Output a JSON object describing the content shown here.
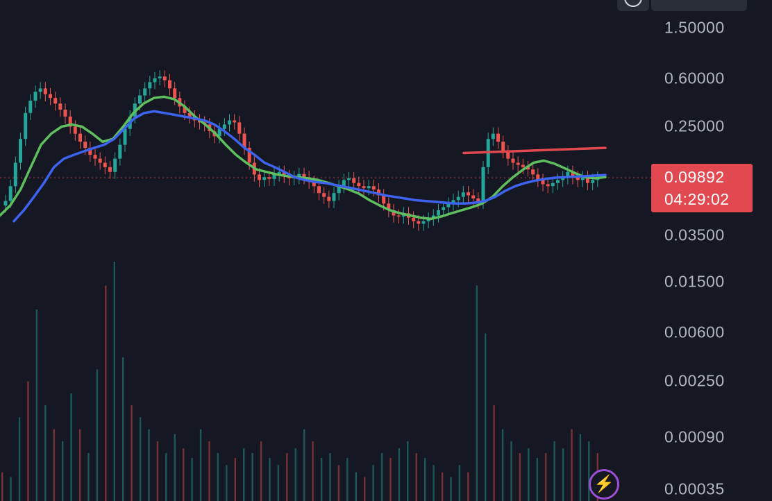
{
  "price_axis": {
    "ticks": [
      {
        "label": "1.50000",
        "value": 1.5
      },
      {
        "label": "0.60000",
        "value": 0.6
      },
      {
        "label": "0.25000",
        "value": 0.25
      },
      {
        "label": "0.03500",
        "value": 0.035
      },
      {
        "label": "0.01500",
        "value": 0.015
      },
      {
        "label": "0.00600",
        "value": 0.006
      },
      {
        "label": "0.00250",
        "value": 0.0025
      },
      {
        "label": "0.00090",
        "value": 0.0009
      },
      {
        "label": "0.00035",
        "value": 0.00035
      }
    ]
  },
  "current_price": {
    "value": "0.09892",
    "countdown": "04:29:02"
  },
  "colors": {
    "background": "#151822",
    "up": "#26a69a",
    "down": "#ef5350",
    "ma_fast": "#5fbf5f",
    "ma_slow": "#3d63f0",
    "trendline": "#e2484f",
    "badge": "#e2484f"
  },
  "chart_data": {
    "type": "candlestick",
    "scale": "log",
    "price_close": [
      0.065,
      0.085,
      0.13,
      0.2,
      0.32,
      0.4,
      0.47,
      0.5,
      0.45,
      0.42,
      0.38,
      0.34,
      0.3,
      0.25,
      0.22,
      0.19,
      0.17,
      0.15,
      0.14,
      0.13,
      0.12,
      0.11,
      0.14,
      0.18,
      0.24,
      0.3,
      0.38,
      0.44,
      0.5,
      0.56,
      0.6,
      0.62,
      0.58,
      0.5,
      0.42,
      0.36,
      0.32,
      0.3,
      0.28,
      0.27,
      0.26,
      0.23,
      0.21,
      0.24,
      0.26,
      0.28,
      0.27,
      0.22,
      0.17,
      0.13,
      0.105,
      0.095,
      0.1,
      0.097,
      0.105,
      0.11,
      0.102,
      0.098,
      0.1,
      0.106,
      0.1,
      0.092,
      0.085,
      0.075,
      0.07,
      0.065,
      0.075,
      0.085,
      0.095,
      0.098,
      0.09,
      0.085,
      0.082,
      0.085,
      0.08,
      0.072,
      0.062,
      0.055,
      0.05,
      0.049,
      0.052,
      0.048,
      0.045,
      0.043,
      0.045,
      0.047,
      0.05,
      0.055,
      0.058,
      0.062,
      0.066,
      0.07,
      0.076,
      0.072,
      0.068,
      0.064,
      0.12,
      0.2,
      0.22,
      0.19,
      0.16,
      0.14,
      0.13,
      0.125,
      0.12,
      0.115,
      0.105,
      0.095,
      0.088,
      0.085,
      0.09,
      0.095,
      0.1,
      0.11,
      0.1,
      0.095,
      0.1,
      0.09,
      0.095,
      0.09892
    ],
    "ma_fast": [
      0.05,
      0.06,
      0.08,
      0.12,
      0.18,
      0.22,
      0.25,
      0.26,
      0.25,
      0.22,
      0.19,
      0.2,
      0.25,
      0.32,
      0.38,
      0.42,
      0.43,
      0.41,
      0.36,
      0.3,
      0.26,
      0.22,
      0.18,
      0.15,
      0.13,
      0.115,
      0.11,
      0.105,
      0.102,
      0.1,
      0.098,
      0.095,
      0.09,
      0.085,
      0.08,
      0.074,
      0.066,
      0.06,
      0.055,
      0.052,
      0.05,
      0.048,
      0.047,
      0.049,
      0.052,
      0.055,
      0.058,
      0.062,
      0.07,
      0.085,
      0.1,
      0.115,
      0.13,
      0.135,
      0.128,
      0.118,
      0.108,
      0.1,
      0.098,
      0.1
    ],
    "ma_slow": [
      0.045,
      0.055,
      0.07,
      0.09,
      0.12,
      0.14,
      0.15,
      0.16,
      0.17,
      0.18,
      0.2,
      0.24,
      0.29,
      0.32,
      0.33,
      0.32,
      0.31,
      0.3,
      0.29,
      0.28,
      0.26,
      0.23,
      0.2,
      0.17,
      0.15,
      0.13,
      0.12,
      0.11,
      0.1,
      0.095,
      0.092,
      0.09,
      0.087,
      0.084,
      0.081,
      0.078,
      0.075,
      0.072,
      0.07,
      0.068,
      0.066,
      0.065,
      0.064,
      0.063,
      0.062,
      0.062,
      0.063,
      0.065,
      0.07,
      0.078,
      0.085,
      0.09,
      0.094,
      0.097,
      0.099,
      0.1,
      0.101,
      0.102,
      0.103,
      0.104
    ],
    "trendline": {
      "from": 0.155,
      "to": 0.17
    },
    "volume_relative": [
      0.12,
      0.1,
      0.35,
      0.5,
      0.8,
      0.4,
      0.3,
      0.25,
      0.45,
      0.3,
      0.2,
      0.55,
      0.9,
      1.0,
      0.6,
      0.4,
      0.35,
      0.3,
      0.25,
      0.2,
      0.28,
      0.22,
      0.18,
      0.3,
      0.25,
      0.2,
      0.15,
      0.18,
      0.22,
      0.2,
      0.25,
      0.18,
      0.15,
      0.2,
      0.22,
      0.3,
      0.25,
      0.18,
      0.2,
      0.15,
      0.18,
      0.12,
      0.1,
      0.15,
      0.2,
      0.18,
      0.22,
      0.25,
      0.2,
      0.18,
      0.15,
      0.12,
      0.1,
      0.15,
      0.12,
      0.9,
      0.7,
      0.4,
      0.3,
      0.25,
      0.2,
      0.22,
      0.18,
      0.2,
      0.25,
      0.22,
      0.3,
      0.28,
      0.25,
      0.2
    ]
  }
}
